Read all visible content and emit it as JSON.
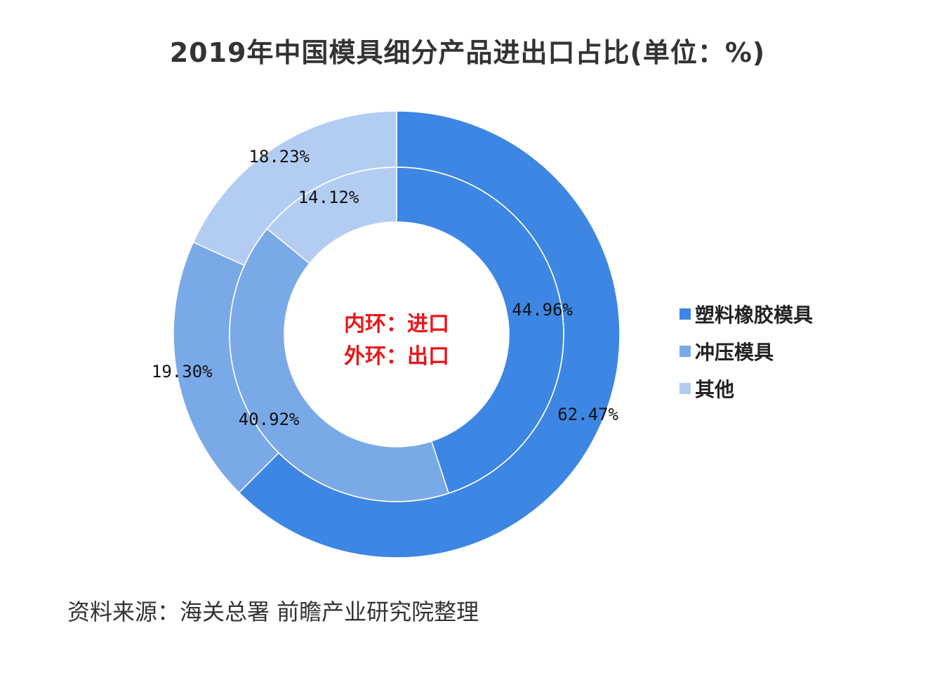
{
  "title": "2019年中国模具细分产品进出口占比(单位：%)",
  "center": {
    "inner_line": "内环：进口",
    "outer_line": "外环：出口",
    "color": "#e8171c"
  },
  "source": "资料来源：海关总署 前瞻产业研究院整理",
  "chart_data": {
    "type": "donut",
    "title": "2019年中国模具细分产品进出口占比(单位：%)",
    "unit": "%",
    "categories": [
      "塑料橡胶模具",
      "冲压模具",
      "其他"
    ],
    "colors": [
      "#3d86e3",
      "#7aa9e8",
      "#b3cdf2"
    ],
    "series": [
      {
        "name": "内环：进口",
        "ring": "inner",
        "values": [
          44.96,
          40.92,
          14.12
        ],
        "labels": [
          "44.96%",
          "40.92%",
          "14.12%"
        ]
      },
      {
        "name": "外环：出口",
        "ring": "outer",
        "values": [
          62.47,
          19.3,
          18.23
        ],
        "labels": [
          "62.47%",
          "19.30%",
          "18.23%"
        ]
      }
    ],
    "legend_position": "right"
  }
}
